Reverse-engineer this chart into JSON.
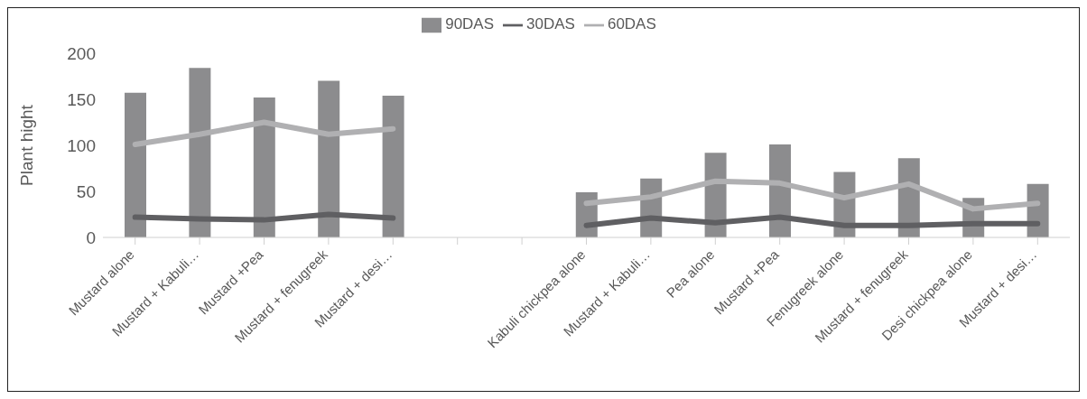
{
  "chart_data": {
    "type": "bar",
    "ylabel": "Plant hight",
    "categories": [
      "Mustard alone",
      "Mustard + Kabuli…",
      "Mustard +Pea",
      "Mustard + fenugreek",
      "Mustard + desi…",
      null,
      null,
      "Kabuli chickpea alone",
      "Mustard + Kabuli…",
      "Pea alone",
      "Mustard +Pea",
      "Fenugreek alone",
      "Mustard + fenugreek",
      "Desi chickpea alone",
      "Mustard + desi…"
    ],
    "series": [
      {
        "name": "90DAS",
        "color": "#8c8c8e",
        "values": [
          157,
          184,
          152,
          170,
          154,
          null,
          null,
          49,
          64,
          92,
          101,
          71,
          86,
          43,
          58
        ]
      },
      {
        "name": "30DAS",
        "type": "line",
        "color": "#5f5f62",
        "values": [
          22,
          20,
          19,
          25,
          21,
          null,
          null,
          13,
          21,
          16,
          22,
          13,
          13,
          15,
          15
        ]
      },
      {
        "name": "60DAS",
        "type": "line",
        "color": "#b0b0b2",
        "values": [
          101,
          112,
          125,
          112,
          118,
          null,
          null,
          37,
          44,
          61,
          59,
          43,
          58,
          31,
          37
        ]
      }
    ],
    "ylim": [
      0,
      200
    ],
    "yticks": [
      0,
      50,
      100,
      150,
      200
    ],
    "grid": false,
    "legend": "top"
  }
}
